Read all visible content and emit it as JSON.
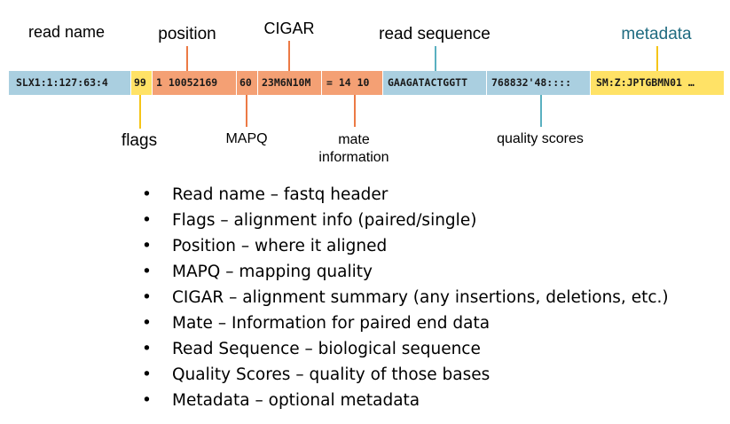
{
  "colors": {
    "blue": "#aacfe0",
    "yellow": "#ffe266",
    "orange": "#f4a074",
    "blue_line": "#5ab0c0",
    "yellow_line": "#f5c518",
    "orange_line": "#ec7a45",
    "metadata_label": "#1f6b80"
  },
  "labels": {
    "read_name": "read name",
    "position": "position",
    "cigar": "CIGAR",
    "read_sequence": "read sequence",
    "metadata": "metadata",
    "flags": "flags",
    "mapq": "MAPQ",
    "mate_line1": "mate",
    "mate_line2": "information",
    "quality_scores": "quality scores"
  },
  "record": {
    "read_name": "SLX1:1:127:63:4",
    "flags": "99",
    "position": "1 10052169",
    "mapq": "60",
    "cigar": "23M6N10M",
    "mate": "= 14 10",
    "sequence": "GAAGATACTGGTT",
    "quality": "768832'48::::",
    "metadata": "SM:Z:JPTGBMN01 …"
  },
  "bullets": [
    {
      "term": "Read name",
      "desc": " – fastq header"
    },
    {
      "term": "Flags",
      "desc": " – alignment info (paired/single)"
    },
    {
      "term": "Position",
      "desc": " – where it aligned"
    },
    {
      "term": "MAPQ",
      "desc": " – mapping quality"
    },
    {
      "term": "CIGAR",
      "desc": " – alignment summary (any insertions, deletions, etc.)"
    },
    {
      "term": "Mate",
      "desc": " – Information for paired end data"
    },
    {
      "term": "Read Sequence",
      "desc": " – biological sequence"
    },
    {
      "term": "Quality Scores",
      "desc": " – quality of those bases"
    },
    {
      "term": "Metadata",
      "desc": " – optional metadata"
    }
  ],
  "bullet_glyph": "•"
}
